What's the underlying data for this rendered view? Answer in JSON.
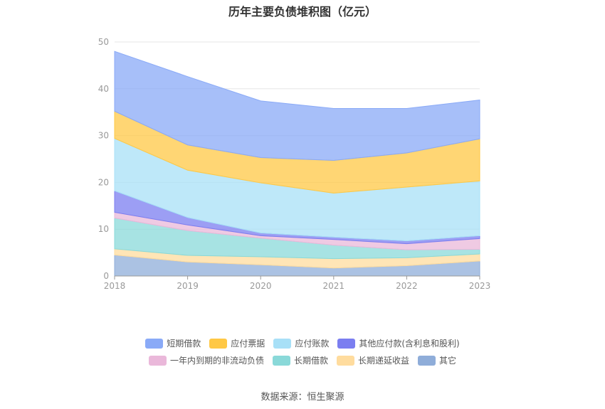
{
  "chart_data": {
    "type": "area",
    "stacked": true,
    "title": "历年主要负债堆积图（亿元）",
    "categories": [
      "2018",
      "2019",
      "2020",
      "2021",
      "2022",
      "2023"
    ],
    "ylim": [
      0,
      50
    ],
    "yticks": [
      0,
      10,
      20,
      30,
      40,
      50
    ],
    "series": [
      {
        "name": "其它",
        "color": "#8fadd9",
        "values": [
          4.5,
          3.0,
          2.4,
          1.7,
          2.2,
          3.2
        ]
      },
      {
        "name": "长期递延收益",
        "color": "#ffdc9e",
        "values": [
          1.3,
          1.4,
          1.7,
          2.0,
          1.7,
          1.5
        ]
      },
      {
        "name": "长期借款",
        "color": "#8ad9d9",
        "values": [
          6.6,
          5.3,
          4.0,
          2.9,
          1.7,
          1.0
        ]
      },
      {
        "name": "一年内到期的非流动负债",
        "color": "#eab8da",
        "values": [
          1.2,
          1.2,
          0.5,
          1.2,
          1.3,
          2.3
        ]
      },
      {
        "name": "其他应付款(含利息和股利)",
        "color": "#7b7ef0",
        "values": [
          4.6,
          1.6,
          0.6,
          0.5,
          0.6,
          0.6
        ]
      },
      {
        "name": "应付账款",
        "color": "#a8e0f7",
        "values": [
          11.2,
          10.1,
          10.7,
          9.4,
          11.5,
          11.7
        ]
      },
      {
        "name": "应付票据",
        "color": "#ffc845",
        "values": [
          5.8,
          5.4,
          5.4,
          7.0,
          7.3,
          9.0
        ]
      },
      {
        "name": "短期借款",
        "color": "#8aaaf7",
        "values": [
          12.8,
          14.6,
          12.1,
          11.1,
          9.5,
          8.3
        ]
      }
    ],
    "source": "数据来源：恒生聚源"
  },
  "legend": {
    "row1": [
      "短期借款",
      "应付票据",
      "应付账款",
      "其他应付款(含利息和股利)"
    ],
    "row2": [
      "一年内到期的非流动负债",
      "长期借款",
      "长期递延收益",
      "其它"
    ]
  }
}
